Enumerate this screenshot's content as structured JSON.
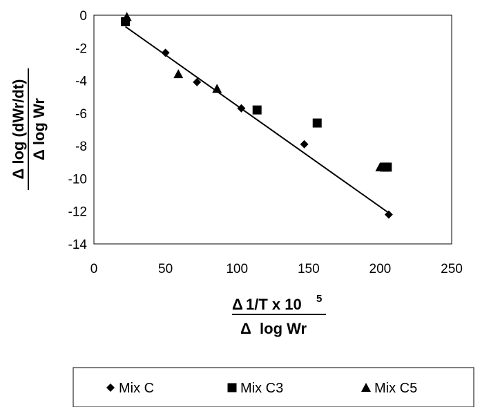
{
  "chart_data": {
    "type": "scatter",
    "xlim": [
      0,
      250
    ],
    "ylim": [
      -14,
      0
    ],
    "x_ticks": [
      0,
      50,
      100,
      150,
      200,
      250
    ],
    "y_ticks": [
      0,
      -2,
      -4,
      -6,
      -8,
      -10,
      -12,
      -14
    ],
    "y_tick_labels": [
      "0",
      "-2",
      "-4",
      "-6",
      "-8",
      "-10",
      "-12",
      "-14"
    ],
    "grid": false,
    "legend_position": "bottom",
    "ylabel": {
      "numerator": "Δ log (dWr/dt)",
      "denominator": "Δ log Wr"
    },
    "xlabel": {
      "numerator_delta": "Δ",
      "numerator_text": "1/T x 10",
      "numerator_exponent": "5",
      "denominator": "Δ  log Wr"
    },
    "series": [
      {
        "name": "Mix C",
        "marker": "diamond",
        "x": [
          22,
          50,
          72,
          103,
          147,
          206
        ],
        "y": [
          -0.4,
          -2.3,
          -4.1,
          -5.7,
          -7.9,
          -12.2
        ]
      },
      {
        "name": "Mix C3",
        "marker": "square",
        "x": [
          22,
          114,
          156,
          203,
          205
        ],
        "y": [
          -0.4,
          -5.8,
          -6.6,
          -9.3,
          -9.3
        ]
      },
      {
        "name": "Mix C5",
        "marker": "triangle",
        "x": [
          23,
          59,
          86,
          200
        ],
        "y": [
          -0.1,
          -3.6,
          -4.5,
          -9.3
        ]
      }
    ],
    "trendline": {
      "x": [
        22,
        206
      ],
      "y": [
        -0.7,
        -12.1
      ]
    }
  }
}
